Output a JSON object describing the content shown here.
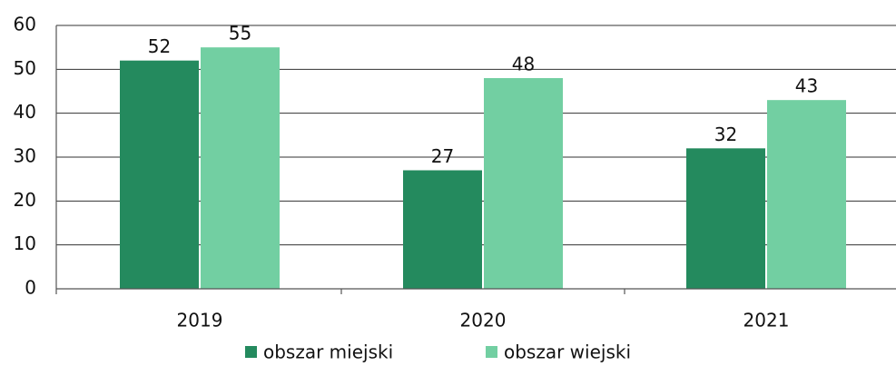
{
  "chart_data": {
    "type": "bar",
    "categories": [
      "2019",
      "2020",
      "2021"
    ],
    "series": [
      {
        "name": "obszar miejski",
        "color": "#248a5e",
        "values": [
          52,
          27,
          32
        ]
      },
      {
        "name": "obszar wiejski",
        "color": "#72cfa2",
        "values": [
          55,
          48,
          43
        ]
      }
    ],
    "ylim": [
      0,
      60
    ],
    "yticks": [
      0,
      10,
      20,
      30,
      40,
      50,
      60
    ],
    "grid": true,
    "legend": "bottom"
  }
}
